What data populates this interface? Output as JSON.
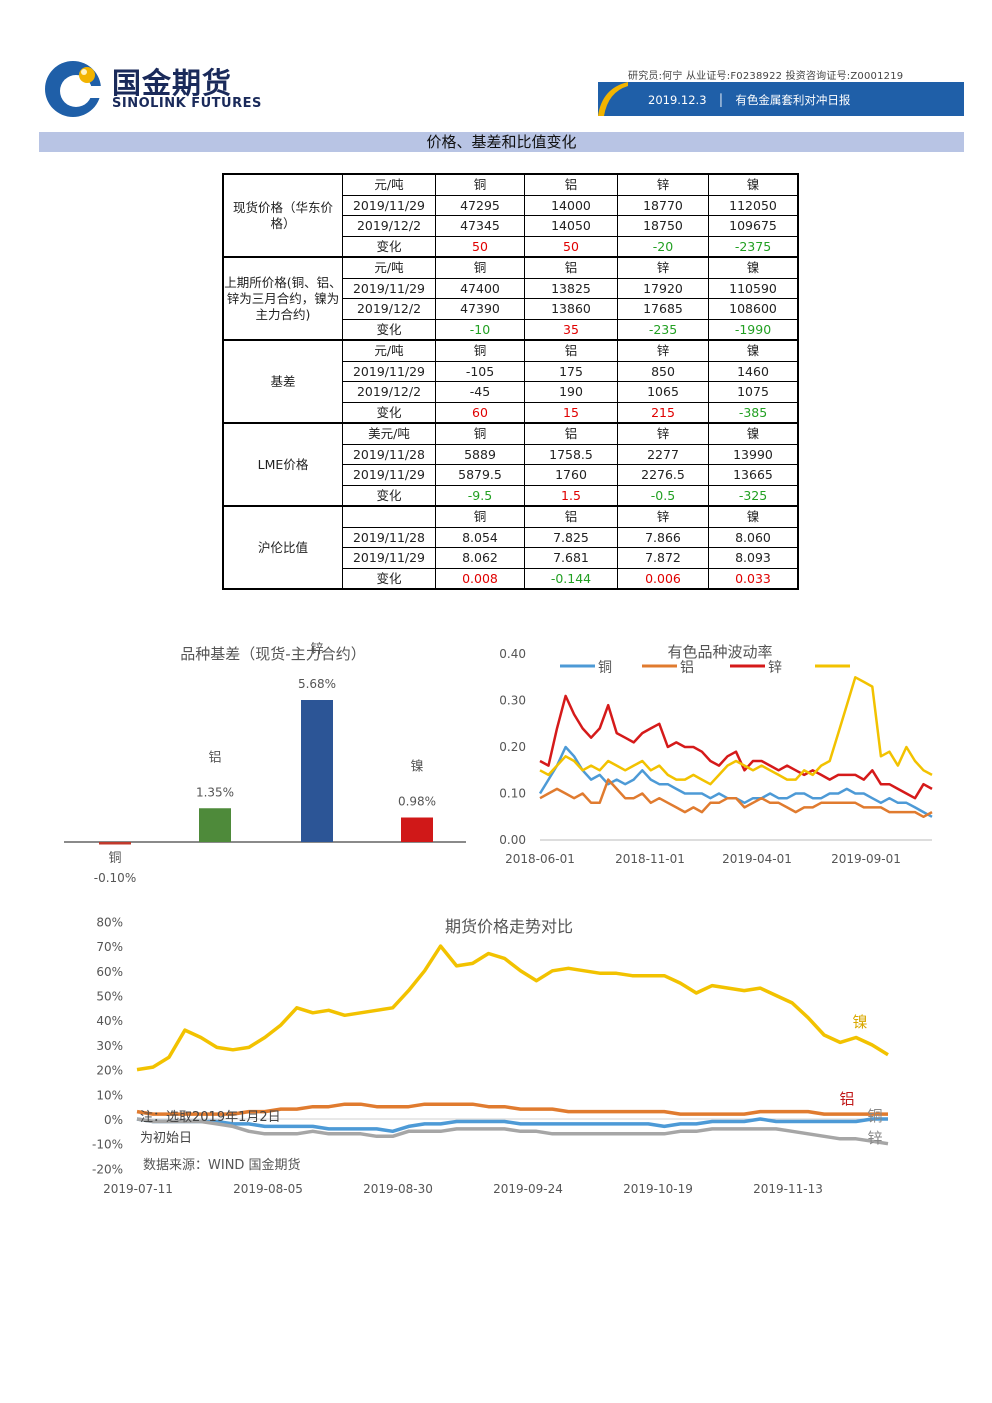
{
  "header": {
    "company_cn": "国金期货",
    "company_en": "SINOLINK FUTURES",
    "credentials": "研究员:何宁  从业证号:F0238922  投资咨询证号:Z0001219",
    "date": "2019.12.3",
    "report_title": "有色金属套利对冲日报",
    "section_title": "价格、基差和比值变化"
  },
  "table": {
    "groups": [
      {
        "name": "现货价格（华东价格）",
        "rows": [
          [
            "元/吨",
            "铜",
            "铝",
            "锌",
            "镍"
          ],
          [
            "2019/11/29",
            "47295",
            "14000",
            "18770",
            "112050"
          ],
          [
            "2019/12/2",
            "47345",
            "14050",
            "18750",
            "109675"
          ],
          [
            "变化",
            "50",
            "50",
            "-20",
            "-2375"
          ]
        ]
      },
      {
        "name": "上期所价格(铜、铝、锌为三月合约，镍为主力合约)",
        "rows": [
          [
            "元/吨",
            "铜",
            "铝",
            "锌",
            "镍"
          ],
          [
            "2019/11/29",
            "47400",
            "13825",
            "17920",
            "110590"
          ],
          [
            "2019/12/2",
            "47390",
            "13860",
            "17685",
            "108600"
          ],
          [
            "变化",
            "-10",
            "35",
            "-235",
            "-1990"
          ]
        ]
      },
      {
        "name": "基差",
        "rows": [
          [
            "元/吨",
            "铜",
            "铝",
            "锌",
            "镍"
          ],
          [
            "2019/11/29",
            "-105",
            "175",
            "850",
            "1460"
          ],
          [
            "2019/12/2",
            "-45",
            "190",
            "1065",
            "1075"
          ],
          [
            "变化",
            "60",
            "15",
            "215",
            "-385"
          ]
        ]
      },
      {
        "name": "LME价格",
        "rows": [
          [
            "美元/吨",
            "铜",
            "铝",
            "锌",
            "镍"
          ],
          [
            "2019/11/28",
            "5889",
            "1758.5",
            "2277",
            "13990"
          ],
          [
            "2019/11/29",
            "5879.5",
            "1760",
            "2276.5",
            "13665"
          ],
          [
            "变化",
            "-9.5",
            "1.5",
            "-0.5",
            "-325"
          ]
        ]
      },
      {
        "name": "沪伦比值",
        "rows": [
          [
            "",
            "铜",
            "铝",
            "锌",
            "镍"
          ],
          [
            "2019/11/28",
            "8.054",
            "7.825",
            "7.866",
            "8.060"
          ],
          [
            "2019/11/29",
            "8.062",
            "7.681",
            "7.872",
            "8.093"
          ],
          [
            "变化",
            "0.008",
            "-0.144",
            "0.006",
            "0.033"
          ]
        ]
      }
    ]
  },
  "chart_data": [
    {
      "type": "bar",
      "title": "品种基差（现货-主力合约）",
      "categories": [
        "铜",
        "铝",
        "锌",
        "镍"
      ],
      "values": [
        -0.1,
        1.35,
        5.68,
        0.98
      ],
      "data_labels": [
        "-0.10%",
        "1.35%",
        "5.68%",
        "0.98%"
      ],
      "colors": [
        "#c0392b",
        "#4e8a3a",
        "#2c5596",
        "#d01818"
      ]
    },
    {
      "type": "line",
      "title": "有色品种波动率",
      "x_ticks": [
        "2018-06-01",
        "2018-11-01",
        "2019-04-01",
        "2019-09-01"
      ],
      "ylim": [
        0,
        0.4
      ],
      "y_ticks": [
        "0.00",
        "0.10",
        "0.20",
        "0.30",
        "0.40"
      ],
      "legend_position": "top",
      "series": [
        {
          "name": "铜",
          "color": "#4d9ad6",
          "values": [
            0.1,
            0.13,
            0.16,
            0.2,
            0.18,
            0.15,
            0.13,
            0.14,
            0.12,
            0.13,
            0.12,
            0.13,
            0.15,
            0.13,
            0.12,
            0.12,
            0.11,
            0.1,
            0.1,
            0.1,
            0.09,
            0.1,
            0.09,
            0.09,
            0.08,
            0.09,
            0.09,
            0.1,
            0.09,
            0.09,
            0.1,
            0.1,
            0.09,
            0.09,
            0.1,
            0.1,
            0.11,
            0.1,
            0.1,
            0.09,
            0.08,
            0.09,
            0.08,
            0.08,
            0.07,
            0.06,
            0.05
          ]
        },
        {
          "name": "铝",
          "color": "#e07b2f",
          "values": [
            0.09,
            0.1,
            0.11,
            0.1,
            0.09,
            0.1,
            0.08,
            0.08,
            0.13,
            0.11,
            0.09,
            0.09,
            0.1,
            0.08,
            0.09,
            0.08,
            0.07,
            0.06,
            0.07,
            0.06,
            0.08,
            0.08,
            0.09,
            0.09,
            0.07,
            0.08,
            0.09,
            0.08,
            0.08,
            0.07,
            0.06,
            0.07,
            0.07,
            0.08,
            0.08,
            0.08,
            0.08,
            0.08,
            0.07,
            0.07,
            0.07,
            0.06,
            0.06,
            0.06,
            0.06,
            0.05,
            0.06
          ]
        },
        {
          "name": "锌",
          "color": "#d51a1a",
          "values": [
            0.17,
            0.16,
            0.24,
            0.31,
            0.27,
            0.24,
            0.22,
            0.24,
            0.29,
            0.23,
            0.22,
            0.21,
            0.23,
            0.24,
            0.25,
            0.2,
            0.21,
            0.2,
            0.2,
            0.19,
            0.17,
            0.16,
            0.18,
            0.19,
            0.15,
            0.17,
            0.17,
            0.16,
            0.15,
            0.16,
            0.15,
            0.14,
            0.15,
            0.14,
            0.13,
            0.14,
            0.14,
            0.14,
            0.13,
            0.15,
            0.12,
            0.12,
            0.11,
            0.1,
            0.09,
            0.12,
            0.11
          ]
        },
        {
          "name": "",
          "color": "#f2c200",
          "values": [
            0.15,
            0.14,
            0.16,
            0.18,
            0.17,
            0.15,
            0.16,
            0.15,
            0.17,
            0.16,
            0.15,
            0.16,
            0.17,
            0.15,
            0.16,
            0.14,
            0.13,
            0.13,
            0.14,
            0.13,
            0.12,
            0.14,
            0.16,
            0.17,
            0.16,
            0.15,
            0.16,
            0.15,
            0.14,
            0.13,
            0.13,
            0.15,
            0.14,
            0.16,
            0.17,
            0.23,
            0.29,
            0.35,
            0.34,
            0.33,
            0.18,
            0.19,
            0.16,
            0.2,
            0.17,
            0.15,
            0.14
          ]
        }
      ]
    },
    {
      "type": "line",
      "title": "期货价格走势对比",
      "x_ticks": [
        "2019-07-11",
        "2019-08-05",
        "2019-08-30",
        "2019-09-24",
        "2019-10-19",
        "2019-11-13"
      ],
      "ylim": [
        -20,
        80
      ],
      "y_ticks": [
        "80%",
        "70%",
        "60%",
        "50%",
        "40%",
        "30%",
        "20%",
        "10%",
        "0%",
        "-10%",
        "-20%"
      ],
      "note_line1": "注：选取2019年1月2日",
      "note_line2": "为初始日",
      "source": "数据来源：WIND 国金期货",
      "series": [
        {
          "name": "镍",
          "color": "#f2c200",
          "values": [
            20,
            21,
            25,
            36,
            33,
            29,
            28,
            29,
            33,
            38,
            45,
            43,
            44,
            42,
            43,
            44,
            45,
            52,
            60,
            70,
            62,
            63,
            67,
            65,
            60,
            56,
            60,
            61,
            60,
            59,
            59,
            58,
            58,
            58,
            55,
            51,
            54,
            53,
            52,
            53,
            50,
            47,
            41,
            34,
            31,
            33,
            30,
            26
          ]
        },
        {
          "name": "铝",
          "color": "#e07b2f",
          "values": [
            3,
            2,
            2,
            2,
            2,
            2,
            2,
            3,
            3,
            4,
            4,
            5,
            5,
            6,
            6,
            5,
            5,
            5,
            6,
            6,
            6,
            6,
            5,
            5,
            4,
            4,
            4,
            3,
            3,
            3,
            3,
            3,
            3,
            3,
            2,
            2,
            2,
            2,
            2,
            3,
            3,
            3,
            3,
            2,
            2,
            2,
            2,
            2
          ]
        },
        {
          "name": "铜",
          "color": "#4d9ad6",
          "values": [
            0,
            -1,
            -1,
            -1,
            -1,
            -1,
            -2,
            -2,
            -3,
            -3,
            -3,
            -3,
            -4,
            -4,
            -4,
            -4,
            -5,
            -3,
            -2,
            -2,
            -1,
            -1,
            -1,
            -1,
            -2,
            -2,
            -2,
            -2,
            -2,
            -2,
            -2,
            -2,
            -2,
            -3,
            -2,
            -2,
            -1,
            -1,
            -1,
            0,
            -1,
            -1,
            -1,
            -1,
            -1,
            -1,
            0,
            0
          ]
        },
        {
          "name": "锌",
          "color": "#a6a6a6",
          "values": [
            0,
            -1,
            -1,
            -1,
            -1,
            -2,
            -3,
            -5,
            -6,
            -6,
            -6,
            -5,
            -6,
            -6,
            -6,
            -7,
            -7,
            -5,
            -5,
            -5,
            -4,
            -4,
            -4,
            -4,
            -5,
            -5,
            -6,
            -6,
            -6,
            -6,
            -6,
            -6,
            -6,
            -6,
            -5,
            -5,
            -4,
            -4,
            -4,
            -4,
            -4,
            -5,
            -6,
            -7,
            -8,
            -8,
            -9,
            -10
          ]
        }
      ]
    }
  ]
}
